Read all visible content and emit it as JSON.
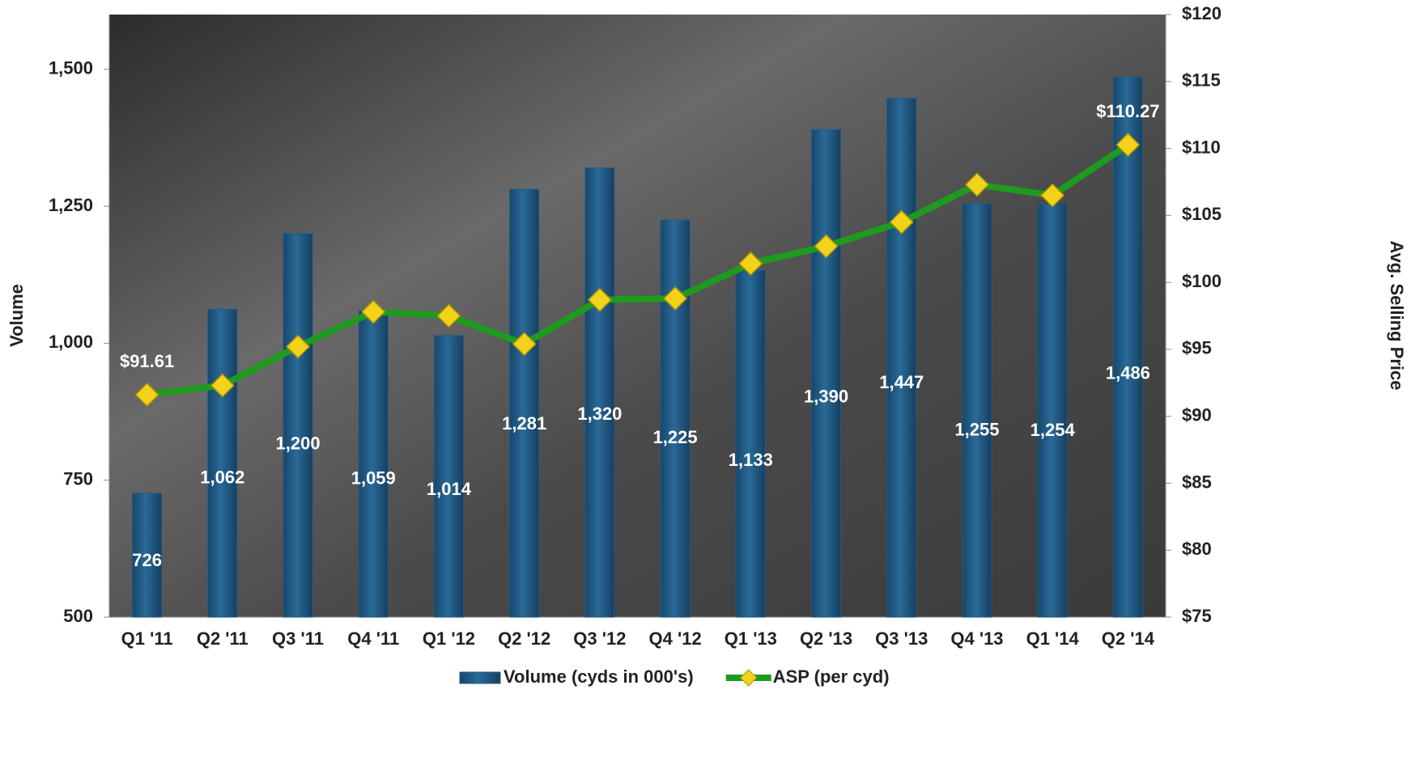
{
  "chart_data": {
    "type": "bar",
    "categories": [
      "Q1 '11",
      "Q2 '11",
      "Q3 '11",
      "Q4 '11",
      "Q1 '12",
      "Q2 '12",
      "Q3 '12",
      "Q4 '12",
      "Q1 '13",
      "Q2 '13",
      "Q3 '13",
      "Q4 '13",
      "Q1 '14",
      "Q2 '14"
    ],
    "series": [
      {
        "name": "Volume (cyds in 000's)",
        "type": "bar",
        "color": "#1f5a85",
        "values": [
          726,
          1062,
          1200,
          1059,
          1014,
          1281,
          1320,
          1225,
          1133,
          1390,
          1447,
          1255,
          1254,
          1486
        ],
        "value_labels": [
          "726",
          "1,062",
          "1,200",
          "1,059",
          "1,014",
          "1,281",
          "1,320",
          "1,225",
          "1,133",
          "1,390",
          "1,447",
          "1,255",
          "1,254",
          "1,486"
        ]
      },
      {
        "name": "ASP (per cyd)",
        "type": "line",
        "axis": "y2",
        "color": "#1e9b1e",
        "marker_color": "#f2d21b",
        "values": [
          91.61,
          92.3,
          95.2,
          97.8,
          97.5,
          95.4,
          98.7,
          98.8,
          101.4,
          102.7,
          104.5,
          107.3,
          106.5,
          110.27
        ],
        "value_labels": [
          "$91.61",
          null,
          null,
          null,
          null,
          null,
          null,
          null,
          null,
          null,
          null,
          null,
          null,
          "$110.27"
        ]
      }
    ],
    "y_label": "Volume",
    "y2_label": "Avg. Selling Price",
    "ylim": [
      500,
      1600
    ],
    "yticks": [
      500,
      750,
      {
        "value": 1000,
        "label": "1,000"
      },
      {
        "value": 1250,
        "label": "1,250"
      },
      {
        "value": 1500,
        "label": "1,500"
      }
    ],
    "y2lim": [
      75,
      120
    ],
    "y2ticks": [
      {
        "value": 75,
        "label": "$75"
      },
      {
        "value": 80,
        "label": "$80"
      },
      {
        "value": 85,
        "label": "$85"
      },
      {
        "value": 90,
        "label": "$90"
      },
      {
        "value": 95,
        "label": "$95"
      },
      {
        "value": 100,
        "label": "$100"
      },
      {
        "value": 105,
        "label": "$105"
      },
      {
        "value": 110,
        "label": "$110"
      },
      {
        "value": 115,
        "label": "$115"
      },
      {
        "value": 120,
        "label": "$120"
      }
    ],
    "grid": false,
    "legend": "bottom"
  }
}
